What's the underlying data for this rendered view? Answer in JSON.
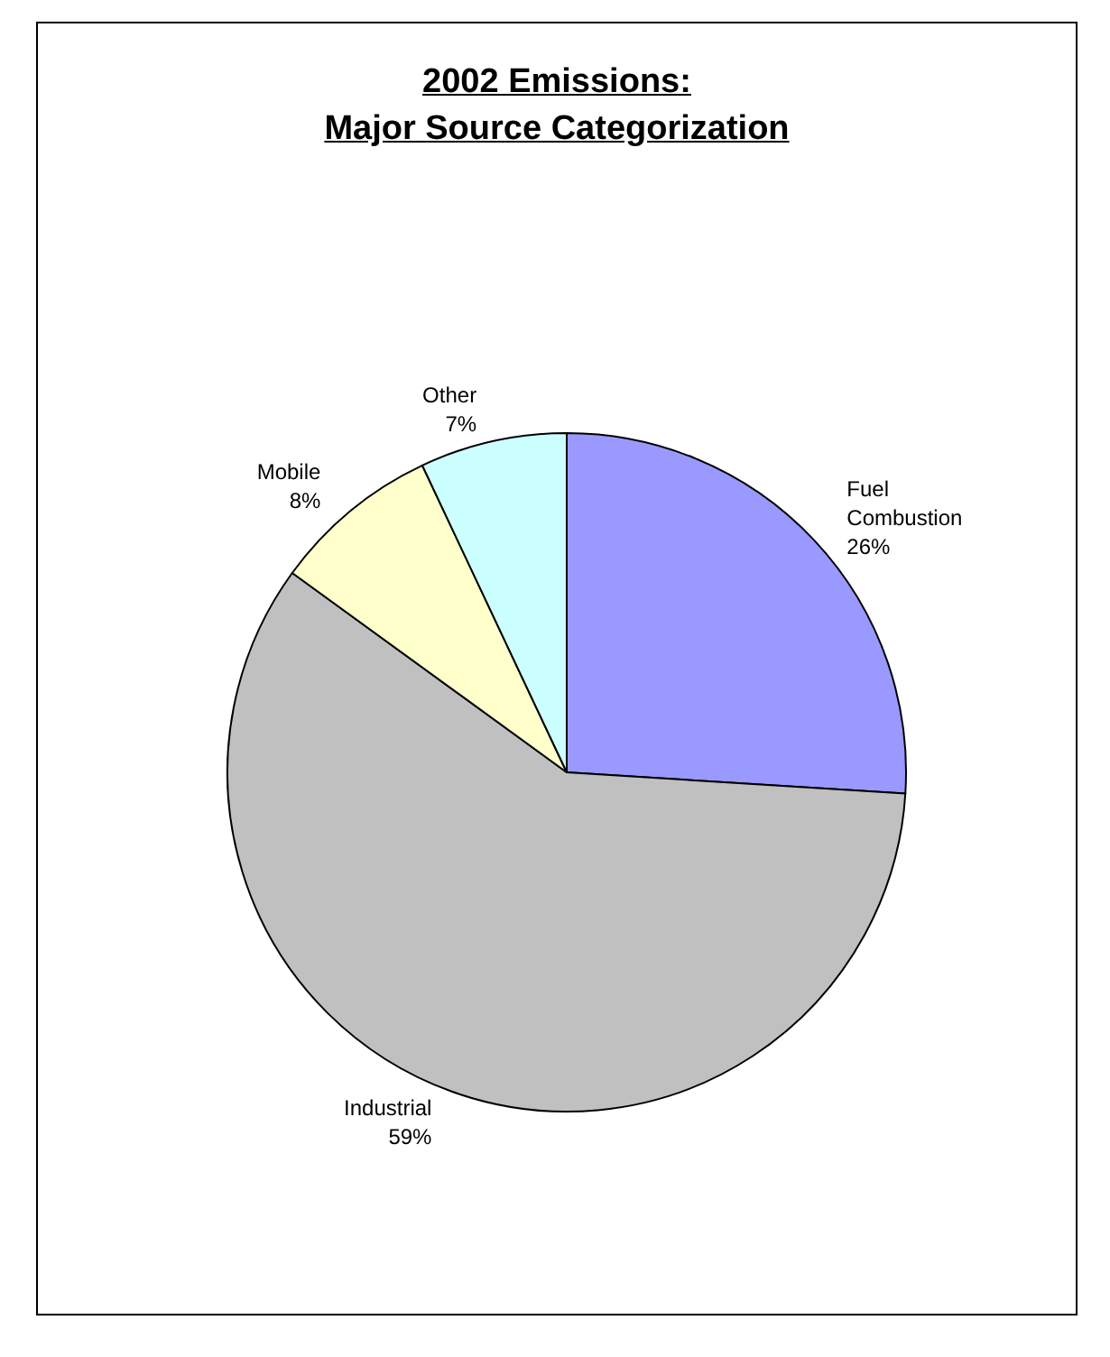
{
  "chart_data": {
    "type": "pie",
    "title": "2002 Emissions:\nMajor Source Categorization",
    "categories": [
      "Fuel Combustion",
      "Industrial",
      "Mobile",
      "Other"
    ],
    "values": [
      26,
      59,
      8,
      7
    ],
    "colors": [
      "#9999ff",
      "#c0c0c0",
      "#ffffcc",
      "#ccffff"
    ],
    "value_labels": [
      "26%",
      "59%",
      "8%",
      "7%"
    ]
  }
}
